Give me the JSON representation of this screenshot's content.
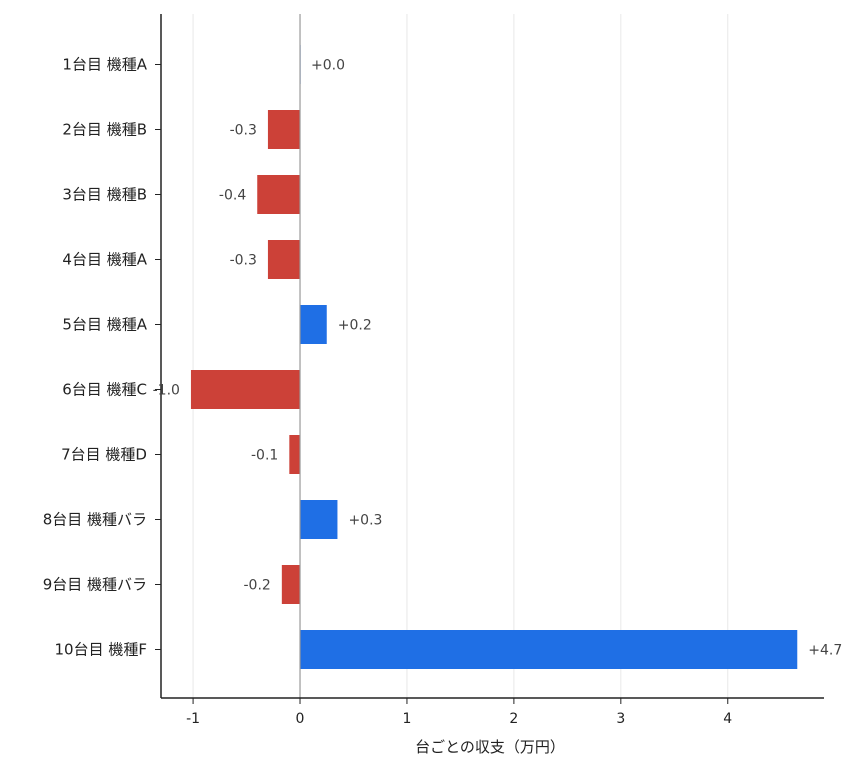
{
  "chart_data": {
    "type": "bar",
    "orientation": "horizontal",
    "title": "",
    "xlabel": "台ごとの収支（万円）",
    "ylabel": "",
    "categories": [
      "1台目 機種A",
      "2台目 機種B",
      "3台目 機種B",
      "4台目 機種A",
      "5台目 機種A",
      "6台目 機種C",
      "7台目 機種D",
      "8台目 機種バラ",
      "9台目 機種バラ",
      "10台目 機種F"
    ],
    "values": [
      0.0,
      -0.3,
      -0.4,
      -0.3,
      0.25,
      -1.02,
      -0.1,
      0.35,
      -0.17,
      4.65
    ],
    "value_labels": [
      "+0.0",
      "-0.3",
      "-0.4",
      "-0.3",
      "+0.2",
      "-1.0",
      "-0.1",
      "+0.3",
      "-0.2",
      "+4.7"
    ],
    "xlim": [
      -1.3,
      4.9
    ],
    "xticks": [
      -1,
      0,
      1,
      2,
      3,
      4
    ],
    "xtick_labels": [
      "-1",
      "0",
      "1",
      "2",
      "3",
      "4"
    ],
    "grid": "vertical",
    "colors": {
      "positive": "#1f6fe5",
      "negative": "#cc4138",
      "grid": "#e8e8e8",
      "zero_line": "#999999",
      "axis": "#222222"
    }
  }
}
